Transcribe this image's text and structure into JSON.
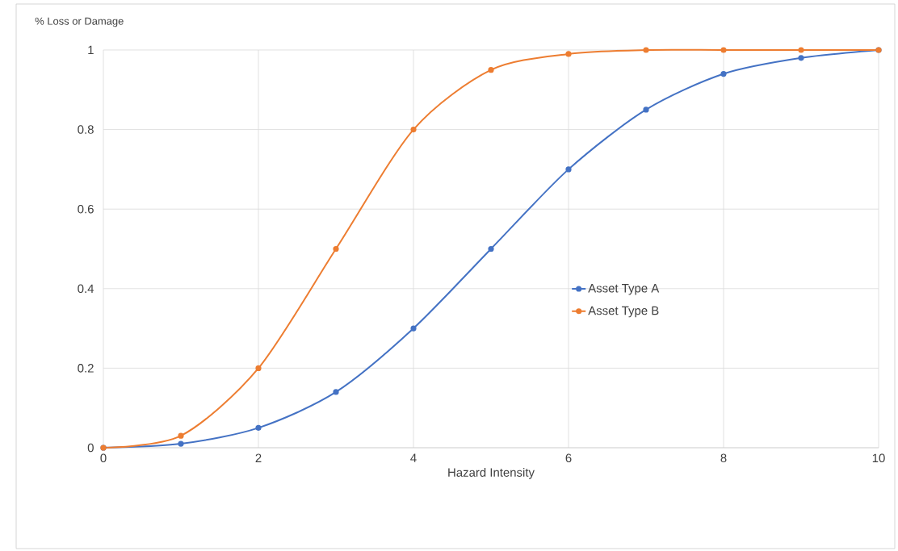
{
  "chart_data": {
    "type": "line",
    "xlabel": "Hazard Intensity",
    "ylabel": "% Loss or Damage",
    "x": [
      0,
      1,
      2,
      3,
      4,
      5,
      6,
      7,
      8,
      9,
      10
    ],
    "series": [
      {
        "name": "Asset Type A",
        "color": "#4472c4",
        "values": [
          0,
          0.01,
          0.05,
          0.14,
          0.3,
          0.5,
          0.7,
          0.85,
          0.94,
          0.98,
          1
        ]
      },
      {
        "name": "Asset Type B",
        "color": "#ed7d31",
        "values": [
          0,
          0.03,
          0.2,
          0.5,
          0.8,
          0.95,
          0.99,
          1,
          1,
          1,
          1
        ]
      }
    ],
    "xlim": [
      0,
      10
    ],
    "xticks": [
      0,
      2,
      4,
      6,
      8,
      10
    ],
    "ylim": [
      0,
      1
    ],
    "yticks": [
      0,
      0.2,
      0.4,
      0.6,
      0.8,
      1
    ],
    "grid": true,
    "legend": "right",
    "marker": "circle",
    "line_style": "solid"
  }
}
